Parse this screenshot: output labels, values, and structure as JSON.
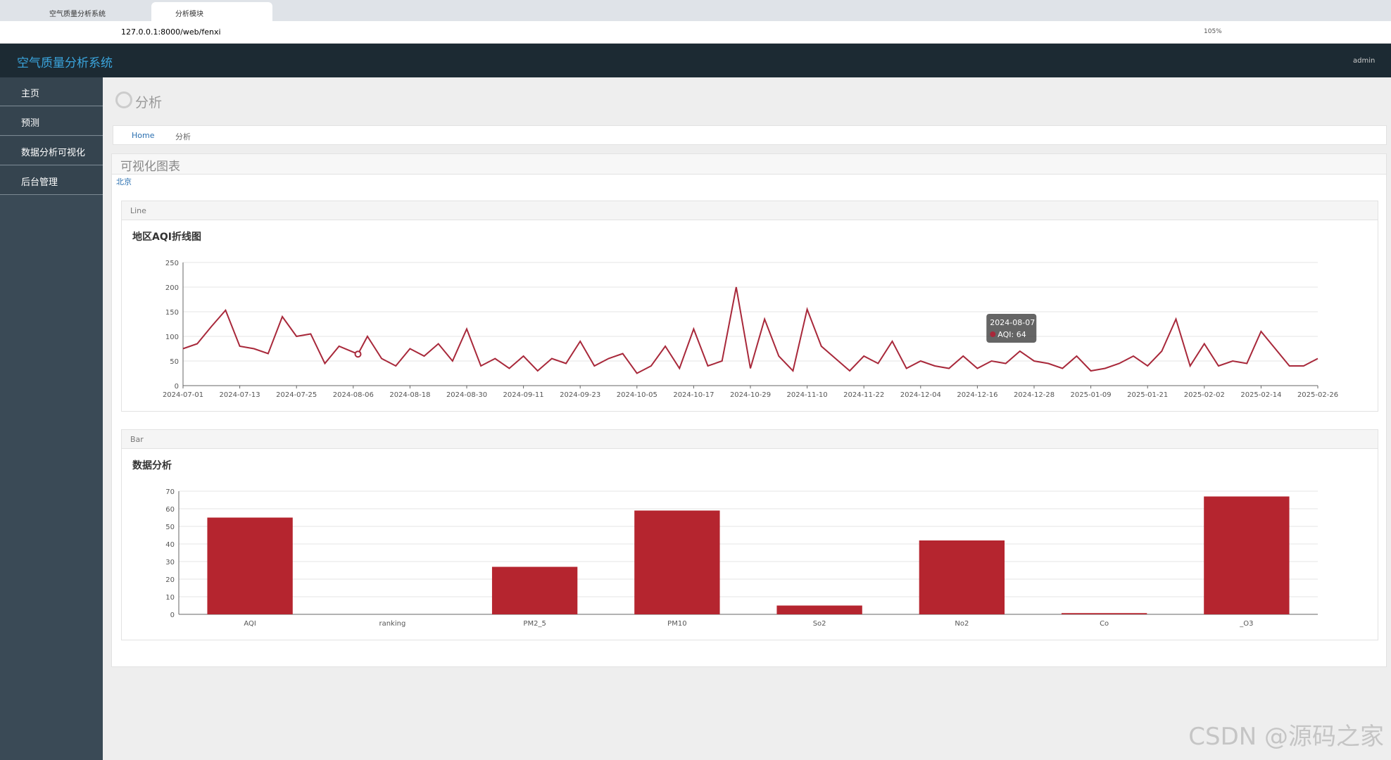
{
  "browser": {
    "tabs": [
      "空气质量分析系统",
      "分析模块"
    ],
    "url": "127.0.0.1:8000/web/fenxi",
    "zoom": "105%"
  },
  "app": {
    "title": "空气质量分析系统",
    "user": "admin"
  },
  "sidebar": {
    "items": [
      "主页",
      "预测",
      "数据分析可视化",
      "后台管理"
    ]
  },
  "page": {
    "title": "分析",
    "breadcrumb": [
      "Home",
      "分析"
    ],
    "panel_title": "可视化图表",
    "city": "北京"
  },
  "chart_data": [
    {
      "type": "line",
      "panel": "Line",
      "title": "地区AQI折线图",
      "color": "#a8283a",
      "x": [
        "2024-07-01",
        "2024-07-04",
        "2024-07-07",
        "2024-07-10",
        "2024-07-13",
        "2024-07-16",
        "2024-07-19",
        "2024-07-22",
        "2024-07-25",
        "2024-07-28",
        "2024-07-31",
        "2024-08-03",
        "2024-08-07",
        "2024-08-09",
        "2024-08-12",
        "2024-08-15",
        "2024-08-18",
        "2024-08-21",
        "2024-08-24",
        "2024-08-27",
        "2024-08-30",
        "2024-09-02",
        "2024-09-05",
        "2024-09-08",
        "2024-09-11",
        "2024-09-14",
        "2024-09-17",
        "2024-09-20",
        "2024-09-23",
        "2024-09-26",
        "2024-09-29",
        "2024-10-02",
        "2024-10-05",
        "2024-10-08",
        "2024-10-11",
        "2024-10-14",
        "2024-10-17",
        "2024-10-20",
        "2024-10-23",
        "2024-10-26",
        "2024-10-29",
        "2024-11-01",
        "2024-11-04",
        "2024-11-07",
        "2024-11-10",
        "2024-11-13",
        "2024-11-16",
        "2024-11-19",
        "2024-11-22",
        "2024-11-25",
        "2024-11-28",
        "2024-12-01",
        "2024-12-04",
        "2024-12-07",
        "2024-12-10",
        "2024-12-13",
        "2024-12-16",
        "2024-12-19",
        "2024-12-22",
        "2024-12-25",
        "2024-12-28",
        "2024-12-31",
        "2025-01-03",
        "2025-01-06",
        "2025-01-09",
        "2025-01-12",
        "2025-01-15",
        "2025-01-18",
        "2025-01-21",
        "2025-01-24",
        "2025-01-27",
        "2025-01-30",
        "2025-02-02",
        "2025-02-05",
        "2025-02-08",
        "2025-02-11",
        "2025-02-14",
        "2025-02-17",
        "2025-02-20",
        "2025-02-23",
        "2025-02-26"
      ],
      "values": [
        75,
        85,
        120,
        153,
        80,
        75,
        65,
        140,
        100,
        105,
        45,
        80,
        64,
        100,
        55,
        40,
        75,
        60,
        85,
        50,
        115,
        40,
        55,
        35,
        60,
        30,
        55,
        45,
        90,
        40,
        55,
        65,
        25,
        40,
        80,
        35,
        115,
        40,
        50,
        200,
        35,
        135,
        60,
        30,
        155,
        80,
        55,
        30,
        60,
        45,
        90,
        35,
        50,
        40,
        35,
        60,
        35,
        50,
        45,
        70,
        50,
        45,
        35,
        60,
        30,
        35,
        45,
        60,
        40,
        70,
        135,
        40,
        85,
        40,
        50,
        45,
        110,
        75,
        40,
        40,
        55
      ],
      "xlim": [
        "2024-07-01",
        "2025-02-26"
      ],
      "xticks": [
        "2024-07-01",
        "2024-07-13",
        "2024-07-25",
        "2024-08-06",
        "2024-08-18",
        "2024-08-30",
        "2024-09-11",
        "2024-09-23",
        "2024-10-05",
        "2024-10-17",
        "2024-10-29",
        "2024-11-10",
        "2024-11-22",
        "2024-12-04",
        "2024-12-16",
        "2024-12-28",
        "2025-01-09",
        "2025-01-21",
        "2025-02-02",
        "2025-02-14",
        "2025-02-26"
      ],
      "ylim": [
        0,
        250
      ],
      "yticks": [
        0,
        50,
        100,
        150,
        200,
        250
      ],
      "grid": true,
      "tooltip": {
        "x": "2024-08-07",
        "title": "2024-08-07",
        "text": "AQI: 64"
      }
    },
    {
      "type": "bar",
      "panel": "Bar",
      "title": "数据分析",
      "color": "#b5252f",
      "categories": [
        "AQI",
        "ranking",
        "PM2_5",
        "PM10",
        "So2",
        "No2",
        "Co",
        "_O3"
      ],
      "values": [
        55,
        0,
        27,
        59,
        5,
        42,
        0.7,
        67
      ],
      "ylim": [
        0,
        70
      ],
      "yticks": [
        0,
        10,
        20,
        30,
        40,
        50,
        60,
        70
      ],
      "grid": true
    }
  ],
  "watermark": "CSDN @源码之家"
}
